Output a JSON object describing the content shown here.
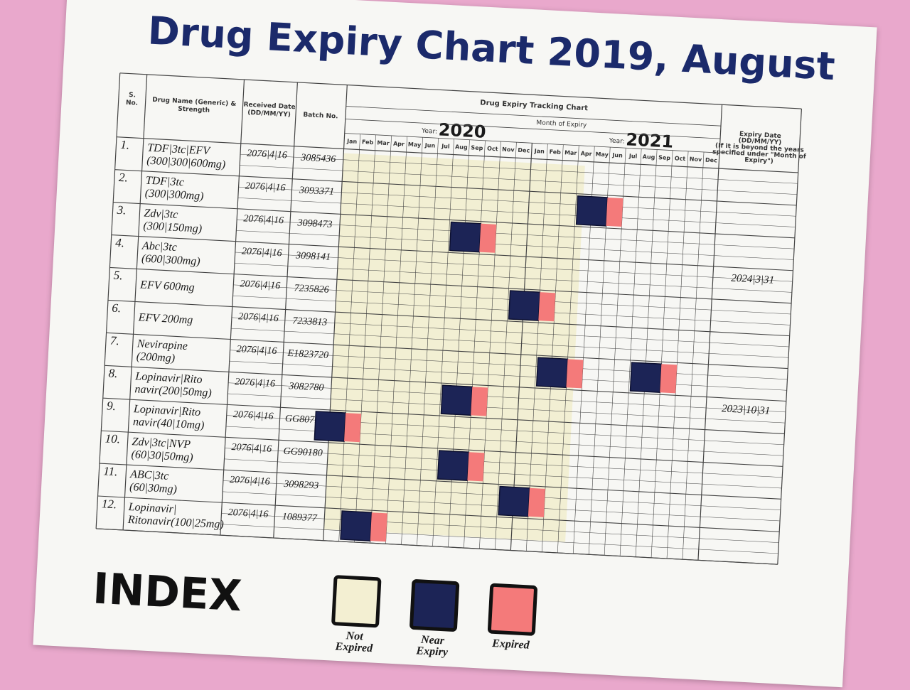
{
  "title": "Drug Expiry Chart 2019, August",
  "table": {
    "headers": {
      "sno": [
        "S.",
        "No."
      ],
      "drug": [
        "Drug Name (Generic) &",
        "Strength"
      ],
      "received": [
        "Received Date",
        "(DD/MM/YY)"
      ],
      "batch": "Batch No.",
      "tracking": "Drug Expiry Tracking Chart",
      "month_of_expiry": "Month of Expiry",
      "year_label": "Year:",
      "years": [
        "2020",
        "2021"
      ],
      "months": [
        "Jan",
        "Feb",
        "Mar",
        "Apr",
        "May",
        "Jun",
        "Jul",
        "Aug",
        "Sep",
        "Oct",
        "Nov",
        "Dec"
      ],
      "expiry_date": [
        "Expiry Date",
        "(DD/MM/YY)",
        "(If it is beyond the years",
        "specified under \"Month of",
        "Expiry\")"
      ]
    },
    "rows": [
      {
        "sno": "1.",
        "drug": [
          "TDF|3tc|EFV",
          "(300|300|600mg)"
        ],
        "received": "2076|4|16",
        "batch": "3085436",
        "marks": []
      },
      {
        "sno": "2.",
        "drug": [
          "TDF|3tc",
          "(300|300mg)"
        ],
        "received": "2076|4|16",
        "batch": "3093371",
        "marks": [
          {
            "near_expiry": {
              "year": "2021",
              "month": "May"
            },
            "expired": {
              "year": "2021",
              "month": "Jun"
            }
          }
        ]
      },
      {
        "sno": "3.",
        "drug": [
          "Zdv|3tc",
          "(300|150mg)"
        ],
        "received": "2076|4|16",
        "batch": "3098473",
        "marks": [
          {
            "near_expiry": {
              "year": "2020",
              "month": "Sep"
            },
            "expired": {
              "year": "2020",
              "month": "Oct"
            }
          }
        ]
      },
      {
        "sno": "4.",
        "drug": [
          "Abc|3tc",
          "(600|300mg)"
        ],
        "received": "2076|4|16",
        "batch": "3098141",
        "marks": [],
        "expiry_date": "2024|3|31"
      },
      {
        "sno": "5.",
        "drug": [
          "EFV 600mg"
        ],
        "received": "2076|4|16",
        "batch": "7235826",
        "marks": [
          {
            "near_expiry": {
              "year": "2021",
              "month": "Jan"
            },
            "expired": {
              "year": "2021",
              "month": "Feb"
            }
          }
        ]
      },
      {
        "sno": "6.",
        "drug": [
          "EFV 200mg"
        ],
        "received": "2076|4|16",
        "batch": "7233813",
        "marks": []
      },
      {
        "sno": "7.",
        "drug": [
          "Nevirapine",
          "(200mg)"
        ],
        "received": "2076|4|16",
        "batch": "E1823720",
        "marks": [
          {
            "near_expiry": {
              "year": "2021",
              "month": "Mar"
            },
            "expired": {
              "year": "2021",
              "month": "Apr"
            }
          },
          {
            "near_expiry": {
              "year": "2021",
              "month": "Sep"
            },
            "expired": {
              "year": "2021",
              "month": "Oct"
            }
          }
        ]
      },
      {
        "sno": "8.",
        "drug": [
          "Lopinavir|Rito",
          "navir(200|50mg)"
        ],
        "received": "2076|4|16",
        "batch": "3082780",
        "marks": [
          {
            "near_expiry": {
              "year": "2020",
              "month": "Sep"
            },
            "expired": {
              "year": "2020",
              "month": "Oct"
            }
          }
        ],
        "expiry_date": "2023|10|31"
      },
      {
        "sno": "9.",
        "drug": [
          "Lopinavir|Rito",
          "navir(40|10mg)"
        ],
        "received": "2076|4|16",
        "batch": "GG80715",
        "marks": [
          {
            "near_expiry": {
              "year": "2020",
              "month": "Jan"
            },
            "expired": {
              "year": "2020",
              "month": "Feb"
            }
          }
        ]
      },
      {
        "sno": "10.",
        "drug": [
          "Zdv|3tc|NVP",
          "(60|30|50mg)"
        ],
        "received": "2076|4|16",
        "batch": "GG90180",
        "marks": [
          {
            "near_expiry": {
              "year": "2020",
              "month": "Sep"
            },
            "expired": {
              "year": "2020",
              "month": "Oct"
            }
          }
        ]
      },
      {
        "sno": "11.",
        "drug": [
          "ABC|3tc",
          "(60|30mg)"
        ],
        "received": "2076|4|16",
        "batch": "3098293",
        "marks": [
          {
            "near_expiry": {
              "year": "2021",
              "month": "Jan"
            },
            "expired": {
              "year": "2021",
              "month": "Feb"
            }
          }
        ]
      },
      {
        "sno": "12.",
        "drug": [
          "Lopinavir|",
          "Ritonavir(100|25mg)"
        ],
        "received": "2076|4|16",
        "batch": "1089377",
        "marks": [
          {
            "near_expiry": {
              "year": "2020",
              "month": "Mar"
            },
            "expired": {
              "year": "2020",
              "month": "Apr"
            }
          }
        ]
      }
    ]
  },
  "legend": {
    "title": "INDEX",
    "items": [
      {
        "label": [
          "Not",
          "Expired"
        ],
        "color": "#f3efd2"
      },
      {
        "label": [
          "Near",
          "Expiry"
        ],
        "color": "#1c2456"
      },
      {
        "label": [
          "Expired"
        ],
        "color": "#f47a7a"
      }
    ]
  }
}
